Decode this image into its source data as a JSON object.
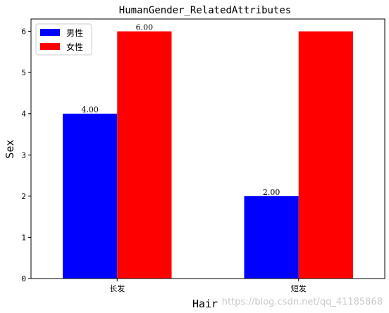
{
  "chart_data": {
    "type": "bar",
    "title": "HumanGender_RelatedAttributes",
    "xlabel": "Hair",
    "ylabel": "Sex",
    "categories": [
      "长发",
      "短发"
    ],
    "series": [
      {
        "name": "男性",
        "values": [
          4,
          2
        ],
        "color": "#0000ff",
        "labels": [
          "4.00",
          "2.00"
        ]
      },
      {
        "name": "女性",
        "values": [
          6,
          6
        ],
        "color": "#ff0000",
        "labels": [
          "6.00",
          ""
        ]
      }
    ],
    "ylim": [
      0,
      6.3
    ],
    "yticks": [
      "0",
      "1",
      "2",
      "3",
      "4",
      "5",
      "6"
    ],
    "grid": false,
    "legend_position": "top-left"
  },
  "watermark": "https://blog.csdn.net/qq_41185868"
}
